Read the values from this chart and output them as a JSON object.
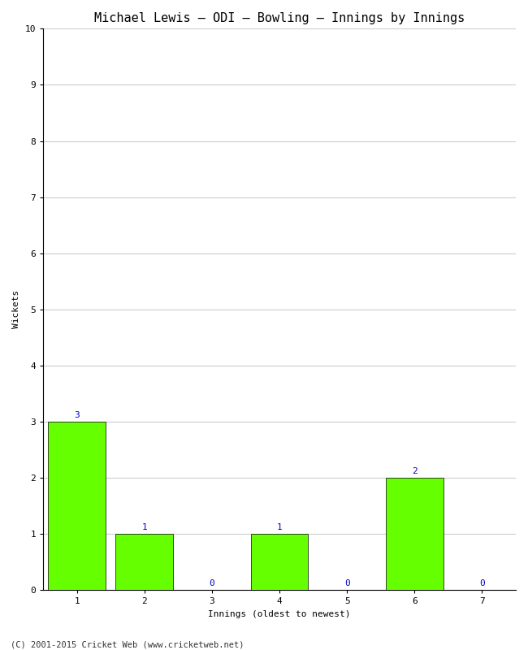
{
  "title": "Michael Lewis – ODI – Bowling – Innings by Innings",
  "xlabel": "Innings (oldest to newest)",
  "ylabel": "Wickets",
  "categories": [
    "1",
    "2",
    "3",
    "4",
    "5",
    "6",
    "7"
  ],
  "values": [
    3,
    1,
    0,
    1,
    0,
    2,
    0
  ],
  "bar_color": "#66ff00",
  "bar_edge_color": "#000000",
  "ylim": [
    0,
    10
  ],
  "yticks": [
    0,
    1,
    2,
    3,
    4,
    5,
    6,
    7,
    8,
    9,
    10
  ],
  "annotation_color": "#0000cc",
  "annotation_fontsize": 8,
  "title_fontsize": 11,
  "axis_label_fontsize": 8,
  "tick_fontsize": 8,
  "footer_text": "(C) 2001-2015 Cricket Web (www.cricketweb.net)",
  "footer_fontsize": 7.5,
  "background_color": "#ffffff",
  "plot_bg_color": "#f0f0f0",
  "grid_color": "#cccccc",
  "font_family": "monospace",
  "bar_width": 0.85
}
